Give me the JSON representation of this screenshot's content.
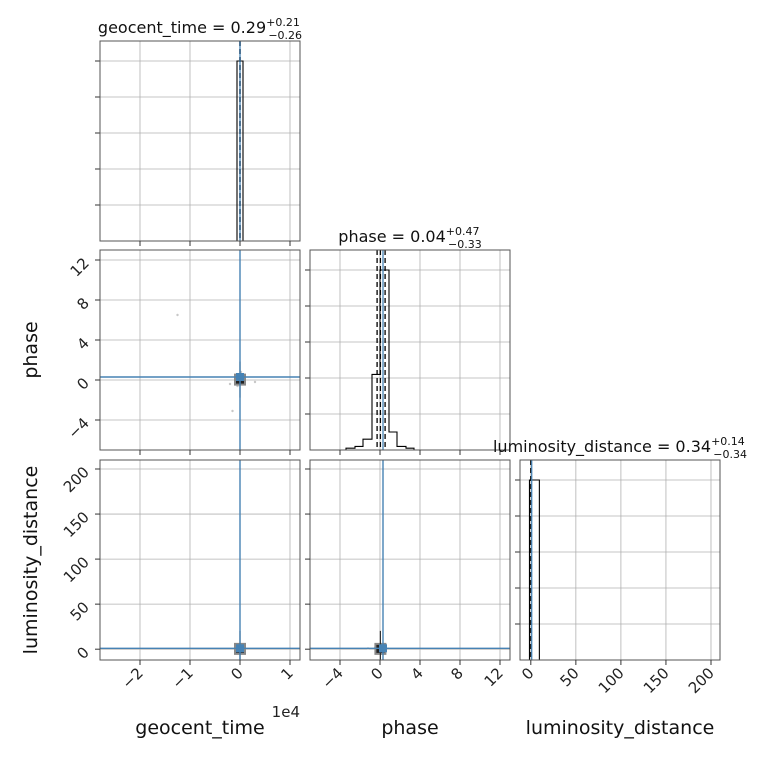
{
  "chart_data": {
    "type": "corner",
    "parameters": [
      {
        "name": "geocent_time",
        "title": {
          "prefix": "geocent_time = ",
          "value": "0.29",
          "upper": "+0.21",
          "lower": "−0.26"
        },
        "range": [
          -28000,
          12000
        ],
        "ticks": [
          -20000,
          -10000,
          0,
          10000
        ],
        "tick_labels": [
          "−2",
          "−1",
          "0",
          "1"
        ],
        "offset_text": "1e4",
        "median": 0.29,
        "quantile_lines": [
          0.03,
          0.29,
          0.5
        ],
        "hist_bins": [
          [
            -600,
            600,
            1.0
          ]
        ]
      },
      {
        "name": "phase",
        "title": {
          "prefix": "phase = ",
          "value": "0.04",
          "upper": "+0.47",
          "lower": "−0.33"
        },
        "range": [
          -7,
          13
        ],
        "ticks": [
          -4,
          0,
          4,
          8,
          12
        ],
        "tick_labels": [
          "−4",
          "0",
          "4",
          "8",
          "12"
        ],
        "median": 0.04,
        "quantile_lines": [
          -0.29,
          0.04,
          0.51
        ],
        "hist_bins": [
          [
            -3.4,
            -2.5,
            0.01
          ],
          [
            -2.5,
            -1.7,
            0.02
          ],
          [
            -1.7,
            -0.8,
            0.06
          ],
          [
            -0.8,
            0.0,
            0.42
          ],
          [
            0.0,
            0.9,
            1.0
          ],
          [
            0.9,
            1.7,
            0.1
          ],
          [
            1.7,
            2.6,
            0.02
          ],
          [
            2.6,
            3.4,
            0.01
          ]
        ]
      },
      {
        "name": "luminosity_distance",
        "title": {
          "prefix": "luminosity_distance = ",
          "value": "0.34",
          "upper": "+0.14",
          "lower": "−0.34"
        },
        "range": [
          -12,
          210
        ],
        "ticks": [
          0,
          50,
          100,
          150,
          200
        ],
        "tick_labels": [
          "0",
          "50",
          "100",
          "150",
          "200"
        ],
        "median": 0.34,
        "quantile_lines": [
          0.0,
          0.34,
          0.48
        ],
        "hist_bins": [
          [
            -1.5,
            9.5,
            1.0
          ]
        ]
      }
    ],
    "truths": {
      "geocent_time": 0,
      "phase": 0.3,
      "luminosity_distance": 1
    },
    "truth_color": "#4682b4",
    "hist_color": "#000000",
    "sample_color": "#888888",
    "grid": true,
    "scatter_samples": {
      "phase_vs_geocent_time": [
        [
          -12500,
          6.5
        ],
        [
          -2000,
          -0.4
        ],
        [
          3000,
          -0.2
        ],
        [
          -1500,
          -3.1
        ],
        [
          -500,
          -0.6
        ],
        [
          200,
          0.8
        ]
      ],
      "luminosity_distance_vs_geocent_time": [
        [
          -300,
          1.5
        ],
        [
          400,
          0.5
        ],
        [
          0,
          3
        ]
      ],
      "luminosity_distance_vs_phase": [
        [
          -0.5,
          1.5
        ],
        [
          0.8,
          0.5
        ],
        [
          0.2,
          3
        ],
        [
          -1.2,
          0.8
        ]
      ]
    }
  }
}
